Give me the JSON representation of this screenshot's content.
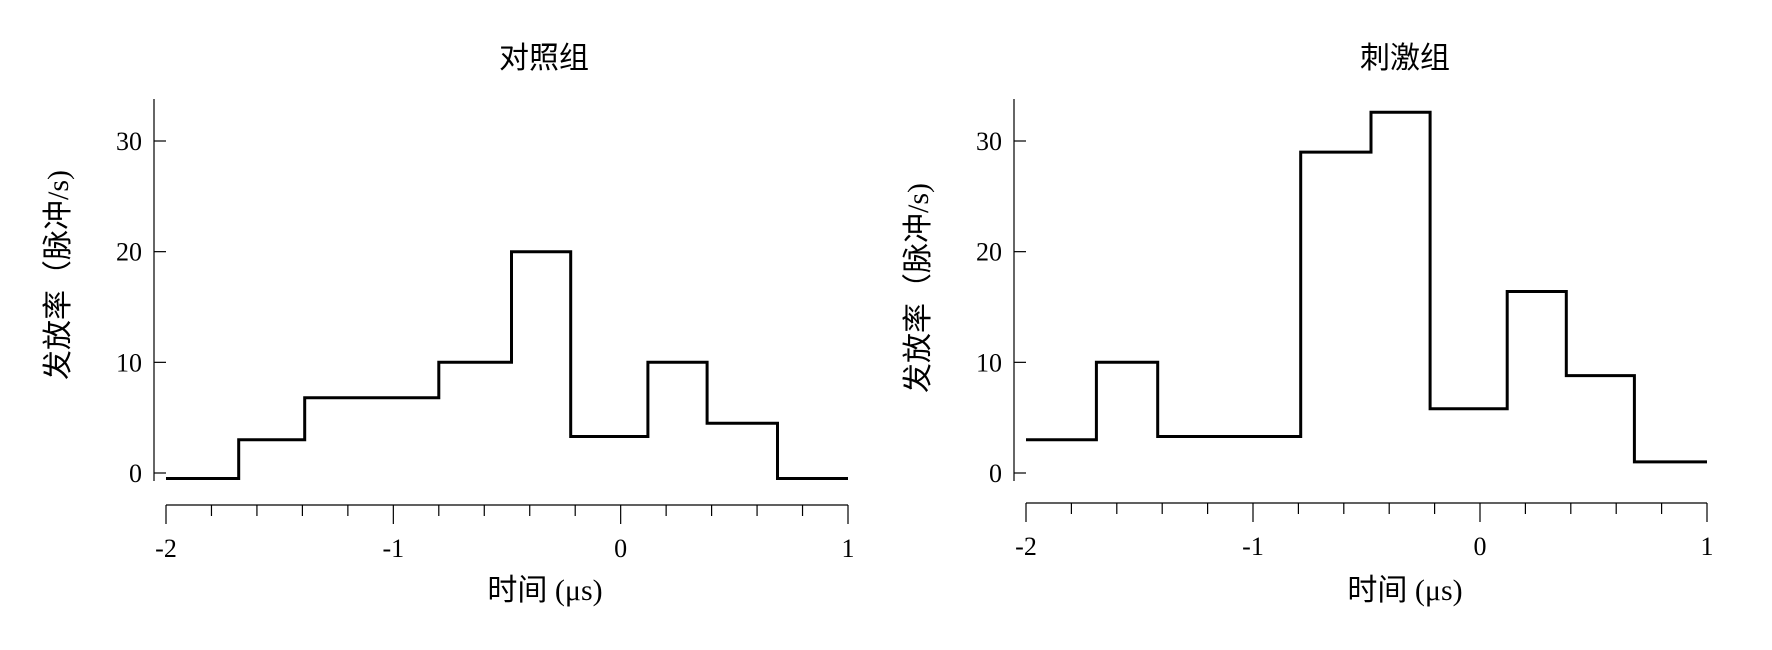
{
  "chart_data": [
    {
      "type": "line",
      "title": "对照组",
      "xlabel": "时间 (μs)",
      "ylabel": "发放率（脉冲/s)",
      "xlim": [
        -2,
        1
      ],
      "ylim": [
        -1,
        34
      ],
      "xticks": [
        -2,
        -1,
        0,
        1
      ],
      "x_minor_tick_step": 0.2,
      "yticks": [
        0,
        10,
        20,
        30
      ],
      "grid": false,
      "bin_edges": [
        -2.0,
        -1.68,
        -1.39,
        -1.09,
        -0.8,
        -0.48,
        -0.22,
        0.12,
        0.38,
        0.69,
        1.0
      ],
      "values": [
        -0.5,
        3,
        6.8,
        6.8,
        10,
        20,
        3.3,
        10,
        4.5,
        -0.5
      ]
    },
    {
      "type": "line",
      "title": "刺激组",
      "xlabel": "时间 (μs)",
      "ylabel": "发放率（脉冲/s)",
      "xlim": [
        -2,
        1
      ],
      "ylim": [
        -1,
        34
      ],
      "xticks": [
        -2,
        -1,
        0,
        1
      ],
      "x_minor_tick_step": 0.2,
      "yticks": [
        0,
        10,
        20,
        30
      ],
      "grid": false,
      "bin_edges": [
        -2.0,
        -1.69,
        -1.42,
        -1.1,
        -0.79,
        -0.48,
        -0.22,
        0.12,
        0.38,
        0.68,
        1.0
      ],
      "values": [
        3,
        10,
        3.3,
        3.3,
        29,
        32.6,
        5.8,
        16.4,
        8.8,
        1
      ]
    }
  ]
}
